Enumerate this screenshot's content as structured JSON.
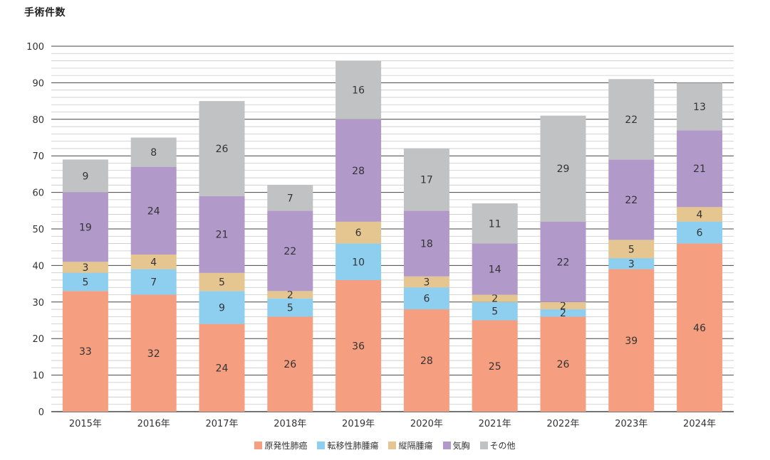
{
  "chart_data": {
    "type": "bar",
    "stacked": true,
    "title": "手術件数",
    "xlabel": "",
    "ylabel": "",
    "ylim": [
      0,
      100
    ],
    "yticks": [
      0,
      10,
      20,
      30,
      40,
      50,
      60,
      70,
      80,
      90,
      100
    ],
    "minor_gridlines_step": 2,
    "grid": true,
    "legend_position": "bottom-center",
    "categories": [
      "2015年",
      "2016年",
      "2017年",
      "2018年",
      "2019年",
      "2020年",
      "2021年",
      "2022年",
      "2023年",
      "2024年"
    ],
    "series": [
      {
        "name": "原発性肺癌",
        "color": "#f59e80",
        "values": [
          33,
          32,
          24,
          26,
          36,
          28,
          25,
          26,
          39,
          46
        ]
      },
      {
        "name": "転移性肺腫瘍",
        "color": "#8ecff0",
        "values": [
          5,
          7,
          9,
          5,
          10,
          6,
          5,
          2,
          3,
          6
        ]
      },
      {
        "name": "縦隔腫瘍",
        "color": "#e5c690",
        "values": [
          3,
          4,
          5,
          2,
          6,
          3,
          2,
          2,
          5,
          4
        ]
      },
      {
        "name": "気胸",
        "color": "#b199c9",
        "values": [
          19,
          24,
          21,
          22,
          28,
          18,
          14,
          22,
          22,
          21
        ]
      },
      {
        "name": "その他",
        "color": "#c1c2c4",
        "values": [
          9,
          8,
          26,
          7,
          16,
          17,
          11,
          29,
          22,
          13
        ]
      }
    ]
  }
}
